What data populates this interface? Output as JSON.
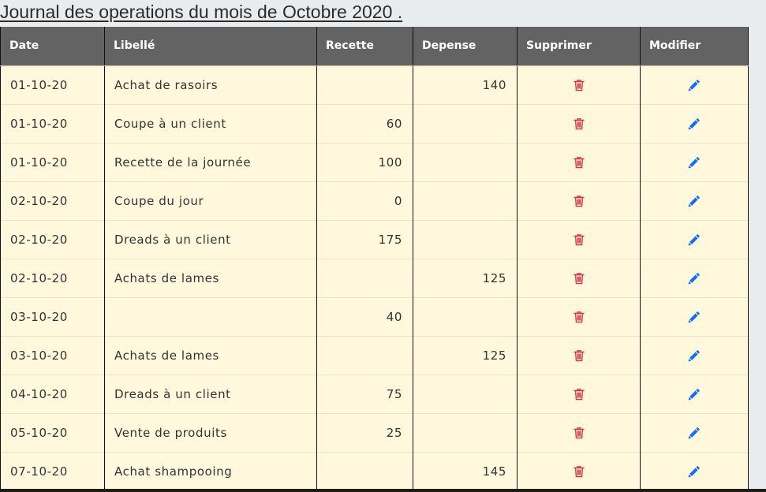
{
  "page": {
    "title": "Journal des operations du mois de Octobre 2020 ."
  },
  "table": {
    "headers": {
      "date": "Date",
      "libelle": "Libellé",
      "recette": "Recette",
      "depense": "Depense",
      "supprimer": "Supprimer",
      "modifier": "Modifier"
    },
    "rows": [
      {
        "date": "01-10-20",
        "libelle": "Achat de rasoirs",
        "recette": "",
        "depense": "140"
      },
      {
        "date": "01-10-20",
        "libelle": "Coupe à un client",
        "recette": "60",
        "depense": ""
      },
      {
        "date": "01-10-20",
        "libelle": "Recette de la journée",
        "recette": "100",
        "depense": ""
      },
      {
        "date": "02-10-20",
        "libelle": "Coupe du jour",
        "recette": "0",
        "depense": ""
      },
      {
        "date": "02-10-20",
        "libelle": "Dreads à un client",
        "recette": "175",
        "depense": ""
      },
      {
        "date": "02-10-20",
        "libelle": "Achats de lames",
        "recette": "",
        "depense": "125"
      },
      {
        "date": "03-10-20",
        "libelle": "",
        "recette": "40",
        "depense": ""
      },
      {
        "date": "03-10-20",
        "libelle": "Achats de lames",
        "recette": "",
        "depense": "125"
      },
      {
        "date": "04-10-20",
        "libelle": "Dreads à un client",
        "recette": "75",
        "depense": ""
      },
      {
        "date": "05-10-20",
        "libelle": "Vente de produits",
        "recette": "25",
        "depense": ""
      },
      {
        "date": "07-10-20",
        "libelle": "Achat shampooing",
        "recette": "",
        "depense": "145"
      }
    ]
  },
  "icons": {
    "delete": "trash-icon",
    "edit": "pencil-icon"
  },
  "colors": {
    "header_bg": "#636363",
    "row_bg": "#fff8dc",
    "delete_icon": "#dc3545",
    "edit_icon": "#0d6efd"
  }
}
